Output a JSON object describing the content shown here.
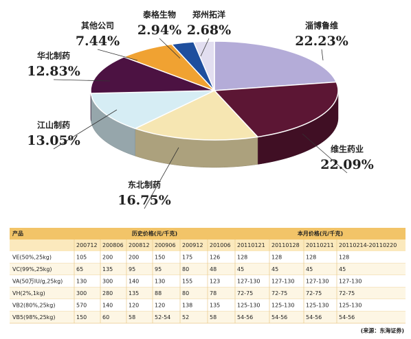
{
  "chart_data": {
    "type": "pie",
    "categories": [
      "淄博鲁维",
      "维生药业",
      "东北制药",
      "江山制药",
      "华北制药",
      "其他公司",
      "泰格生物",
      "郑州拓洋"
    ],
    "values": [
      22.23,
      22.09,
      16.75,
      13.05,
      12.83,
      7.44,
      2.94,
      2.68
    ],
    "value_labels": [
      "22.23%",
      "22.09%",
      "16.75%",
      "13.05%",
      "12.83%",
      "7.44%",
      "2.94%",
      "2.68%"
    ],
    "colors": [
      "#b4acd8",
      "#5c1634",
      "#f6e6b2",
      "#d6edf4",
      "#4c1242",
      "#f0a232",
      "#1f4f9e",
      "#e2def0"
    ]
  },
  "table": {
    "header": [
      "产品",
      "历史价格(元/千克)",
      "本月价格(元/千克)"
    ],
    "dates": [
      "200712",
      "200806",
      "200812",
      "200906",
      "200912",
      "201006",
      "20110121",
      "20110128",
      "20110211",
      "20110214-20110220"
    ],
    "rows": [
      [
        "VE(50%,25kg)",
        105,
        200,
        200,
        150,
        175,
        126,
        128,
        128,
        128,
        128
      ],
      [
        "VC(99%,25kg)",
        65,
        135,
        95,
        95,
        80,
        48,
        45,
        45,
        45,
        45
      ],
      [
        "VA(50万IU/g,25kg)",
        130,
        300,
        140,
        130,
        155,
        123,
        "127-130",
        "127-130",
        "127-130",
        "127-130"
      ],
      [
        "VH(2%,1kg)",
        300,
        280,
        135,
        88,
        80,
        78,
        "72-75",
        "72-75",
        "72-75",
        "72-75"
      ],
      [
        "VB2(80%,25kg)",
        570,
        140,
        120,
        120,
        138,
        135,
        "125-130",
        "125-130",
        "125-130",
        "125-130"
      ],
      [
        "VB5(98%,25kg)",
        150,
        60,
        58,
        "52-54",
        52,
        58,
        "54-56",
        "54-56",
        "54-56",
        "54-56"
      ]
    ],
    "source": "(来源：东海证券)"
  }
}
